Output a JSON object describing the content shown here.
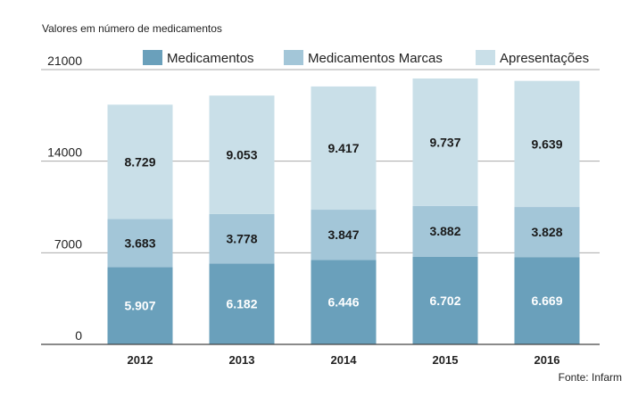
{
  "chart_data": {
    "type": "bar",
    "stacked": true,
    "subtitle": "Valores em número de medicamentos",
    "source": "Fonte: Infarm",
    "categories": [
      "2012",
      "2013",
      "2014",
      "2015",
      "2016"
    ],
    "series": [
      {
        "name": "Medicamentos",
        "color": "#6aa0bb",
        "label_color": "#ffffff",
        "values": [
          5907,
          6182,
          6446,
          6702,
          6669
        ],
        "labels": [
          "5.907",
          "6.182",
          "6.446",
          "6.702",
          "6.669"
        ]
      },
      {
        "name": "Medicamentos Marcas",
        "color": "#a3c6d8",
        "label_color": "#1a1a1a",
        "values": [
          3683,
          3778,
          3847,
          3882,
          3828
        ],
        "labels": [
          "3.683",
          "3.778",
          "3.847",
          "3.882",
          "3.828"
        ]
      },
      {
        "name": "Apresentações",
        "color": "#c9dfe8",
        "label_color": "#1a1a1a",
        "values": [
          8729,
          9053,
          9417,
          9737,
          9639
        ],
        "labels": [
          "8.729",
          "9.053",
          "9.417",
          "9.737",
          "9.639"
        ]
      }
    ],
    "y_ticks": [
      "0",
      "7000",
      "14000",
      "21000"
    ],
    "y_tick_values": [
      0,
      7000,
      14000,
      21000
    ],
    "ylim": [
      0,
      21000
    ],
    "legend_position": "top",
    "grid": true,
    "colors": {
      "grid": "#aaaaaa",
      "axis": "#444444"
    }
  }
}
